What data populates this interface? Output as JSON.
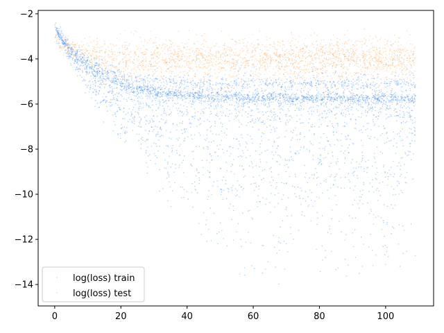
{
  "chart_data": {
    "type": "scatter",
    "title": "",
    "xlabel": "",
    "ylabel": "",
    "xlim": [
      -5,
      114.5
    ],
    "ylim": [
      -14.95,
      -1.85
    ],
    "x_ticks": [
      0,
      20,
      40,
      60,
      80,
      100
    ],
    "y_ticks": [
      -2,
      -4,
      -6,
      -8,
      -10,
      -12,
      -14
    ],
    "x_tick_labels": [
      "0",
      "20",
      "40",
      "60",
      "80",
      "100"
    ],
    "y_tick_labels": [
      "−2",
      "−4",
      "−6",
      "−8",
      "−10",
      "−12",
      "−14"
    ],
    "grid": false,
    "legend_position": "lower-left",
    "series": [
      {
        "name": "log(loss) train",
        "color": "#1f7bff",
        "x_range": [
          0,
          109
        ],
        "start_y": -2.6,
        "plateau_upper": -5.1,
        "plateau_main": -5.75,
        "plateau_lower_spread_min": -14.1,
        "description_points": [
          {
            "x": 0,
            "y": -2.6
          },
          {
            "x": 10,
            "y": -4.2
          },
          {
            "x": 20,
            "y": -4.9
          },
          {
            "x": 40,
            "y": -5.5
          },
          {
            "x": 60,
            "y": -5.7
          },
          {
            "x": 80,
            "y": -5.75
          },
          {
            "x": 109,
            "y": -5.75
          }
        ]
      },
      {
        "name": "log(loss) test",
        "color": "#ff9933",
        "x_range": [
          0,
          109
        ],
        "start_y": -3.0,
        "plateau_center": -4.0,
        "description_points": [
          {
            "x": 0,
            "y": -3.0
          },
          {
            "x": 10,
            "y": -3.8
          },
          {
            "x": 20,
            "y": -4.0
          },
          {
            "x": 40,
            "y": -4.0
          },
          {
            "x": 60,
            "y": -3.95
          },
          {
            "x": 80,
            "y": -4.0
          },
          {
            "x": 109,
            "y": -4.0
          }
        ]
      }
    ]
  }
}
